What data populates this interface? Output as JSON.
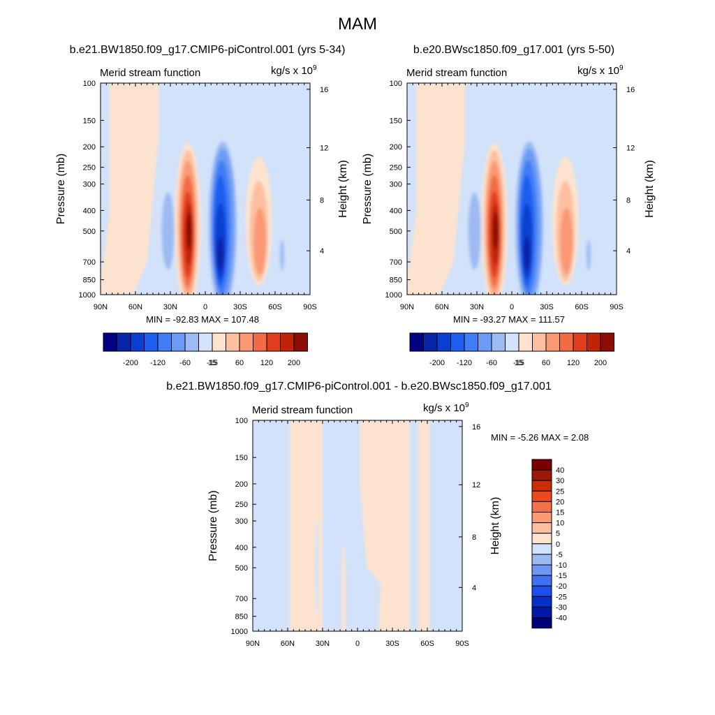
{
  "figure": {
    "title": "MAM",
    "bottom_title": "b.e21.BW1850.f09_g17.CMIP6-piControl.001 - b.e20.BWsc1850.f09_g17.001"
  },
  "colors": {
    "top_palette": [
      "#000080",
      "#0a24a8",
      "#0c3fd0",
      "#1f5ef0",
      "#3f7cf5",
      "#6b9bf5",
      "#9dbaf3",
      "#d1e2fa",
      "#fde3cf",
      "#fcbfa0",
      "#f99872",
      "#f26b46",
      "#e03d1e",
      "#bf2408",
      "#8c0c06"
    ],
    "diff_palette": [
      "#00007a",
      "#0018a6",
      "#0630cc",
      "#1e4fea",
      "#3f72f3",
      "#6d95f2",
      "#9cb9f1",
      "#d1e2fa",
      "#fde3cf",
      "#fcbfa0",
      "#f99a74",
      "#f47048",
      "#e84a20",
      "#cc2c06",
      "#9b1706",
      "#7a0000"
    ]
  },
  "chart_data": [
    {
      "type": "heatmap",
      "panel": "left",
      "subtitle": "b.e21.BW1850.f09_g17.CMIP6-piControl.001 (yrs 5-34)",
      "left_string": "Merid stream function",
      "units_base": "kg/s x 10",
      "units_exp": "9",
      "ylabel": "Pressure (mb)",
      "ylabel_right": "Height (km)",
      "x_ticks": [
        "90N",
        "60N",
        "30N",
        "0",
        "30S",
        "60S",
        "90S"
      ],
      "x_range": [
        90,
        -90
      ],
      "y_ticks": [
        "100",
        "150",
        "200",
        "250",
        "300",
        "400",
        "500",
        "700",
        "850",
        "1000"
      ],
      "y_range": [
        100,
        1000
      ],
      "y_scale": "log",
      "height_ticks": [
        "16",
        "12",
        "8",
        "4"
      ],
      "min_max_text": "MIN = -92.83  MAX = 107.48",
      "min": -92.83,
      "max": 107.48,
      "colorbar_labels": [
        "-200",
        "-120",
        "-60",
        "-15",
        "15",
        "60",
        "120",
        "200"
      ],
      "cells": [
        {
          "lat": 70,
          "p": 700,
          "level": 7
        },
        {
          "lat": 30,
          "p": 500,
          "level": 8
        },
        {
          "lat": 15,
          "p": 400,
          "level": 14
        },
        {
          "lat": -15,
          "p": 400,
          "level": 0
        },
        {
          "lat": -45,
          "p": 500,
          "level": 10
        }
      ]
    },
    {
      "type": "heatmap",
      "panel": "right",
      "subtitle": "b.e20.BWsc1850.f09_g17.001 (yrs 5-50)",
      "left_string": "Merid stream function",
      "units_base": "kg/s x 10",
      "units_exp": "9",
      "ylabel": "Pressure (mb)",
      "ylabel_right": "Height (km)",
      "x_ticks": [
        "90N",
        "60N",
        "30N",
        "0",
        "30S",
        "60S",
        "90S"
      ],
      "x_range": [
        90,
        -90
      ],
      "y_ticks": [
        "100",
        "150",
        "200",
        "250",
        "300",
        "400",
        "500",
        "700",
        "850",
        "1000"
      ],
      "y_range": [
        100,
        1000
      ],
      "y_scale": "log",
      "height_ticks": [
        "16",
        "12",
        "8",
        "4"
      ],
      "min_max_text": "MIN = -93.27  MAX = 111.57",
      "min": -93.27,
      "max": 111.57,
      "colorbar_labels": [
        "-200",
        "-120",
        "-60",
        "-15",
        "15",
        "60",
        "120",
        "200"
      ],
      "cells": [
        {
          "lat": 70,
          "p": 700,
          "level": 7
        },
        {
          "lat": 30,
          "p": 500,
          "level": 8
        },
        {
          "lat": 15,
          "p": 400,
          "level": 14
        },
        {
          "lat": -15,
          "p": 400,
          "level": 0
        },
        {
          "lat": -45,
          "p": 500,
          "level": 10
        }
      ]
    },
    {
      "type": "heatmap",
      "panel": "difference",
      "left_string": "Merid stream function",
      "units_base": "kg/s x 10",
      "units_exp": "9",
      "ylabel": "Pressure (mb)",
      "ylabel_right": "Height (km)",
      "x_ticks": [
        "90N",
        "60N",
        "30N",
        "0",
        "30S",
        "60S",
        "90S"
      ],
      "x_range": [
        90,
        -90
      ],
      "y_ticks": [
        "100",
        "150",
        "200",
        "250",
        "300",
        "400",
        "500",
        "700",
        "850",
        "1000"
      ],
      "y_range": [
        100,
        1000
      ],
      "y_scale": "log",
      "height_ticks": [
        "16",
        "12",
        "8",
        "4"
      ],
      "min_max_text": "MIN =  -5.26  MAX =   2.08",
      "min": -5.26,
      "max": 2.08,
      "colorbar_labels": [
        "40",
        "30",
        "25",
        "20",
        "15",
        "10",
        "5",
        "0",
        "-5",
        "-10",
        "-15",
        "-20",
        "-25",
        "-30",
        "-40"
      ],
      "cells": [
        {
          "lat": 75,
          "p": 500,
          "level": 7
        },
        {
          "lat": 45,
          "p": 500,
          "level": 8
        },
        {
          "lat": 15,
          "p": 500,
          "level": 7
        },
        {
          "lat": -15,
          "p": 500,
          "level": 8
        },
        {
          "lat": -45,
          "p": 500,
          "level": 8
        },
        {
          "lat": -75,
          "p": 500,
          "level": 7
        }
      ]
    }
  ]
}
